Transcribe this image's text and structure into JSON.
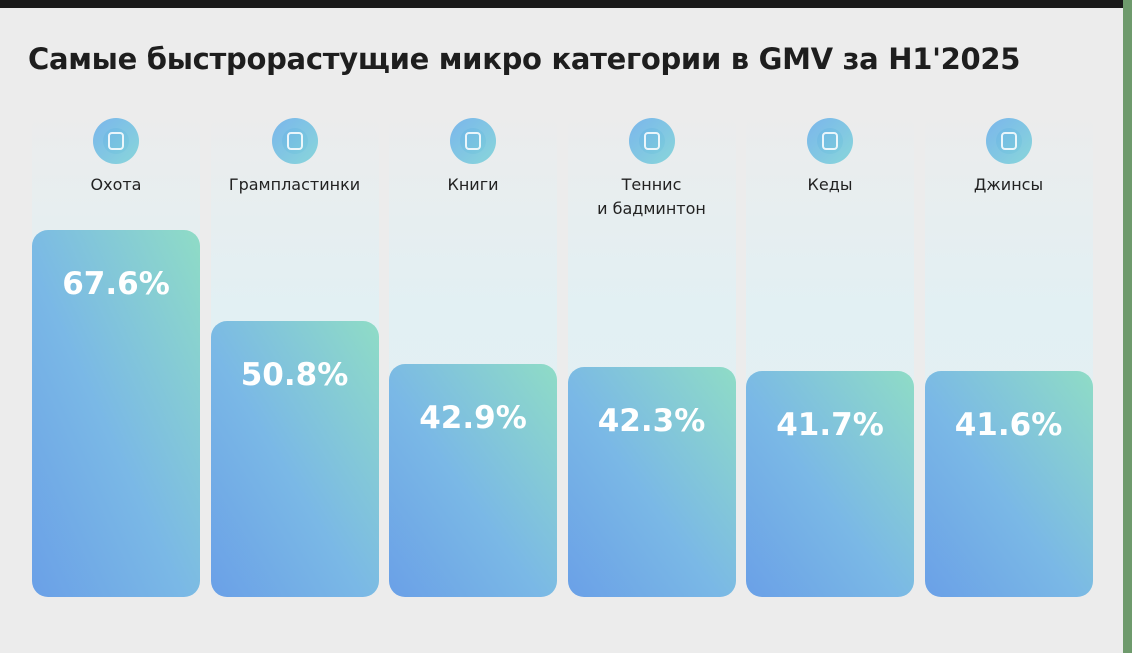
{
  "chart_data": {
    "type": "bar",
    "title": "Самые быстрорастущие микро категории в GMV за H1'2025",
    "categories": [
      "Охота",
      "Грампластинки",
      "Книги",
      "Теннис\nи бадминтон",
      "Кеды",
      "Джинсы"
    ],
    "values": [
      67.6,
      50.8,
      42.9,
      42.3,
      41.7,
      41.6
    ],
    "value_labels": [
      "67.6%",
      "50.8%",
      "42.9%",
      "42.3%",
      "41.7%",
      "41.6%"
    ]
  }
}
